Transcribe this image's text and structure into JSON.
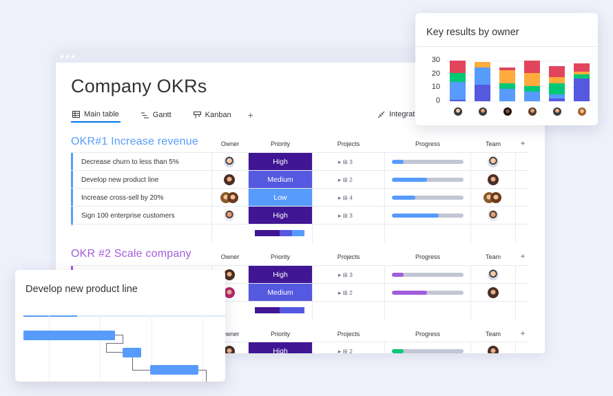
{
  "window": {
    "title": "Company OKRs",
    "tabs": [
      {
        "label": "Main table",
        "icon": "table-icon",
        "active": true
      },
      {
        "label": "Gantt",
        "icon": "gantt-icon",
        "active": false
      },
      {
        "label": "Kanban",
        "icon": "kanban-icon",
        "active": false
      }
    ],
    "add_tab": "+",
    "integrate_label": "Integrat",
    "integrate_icon": "integrate-icon"
  },
  "columns": {
    "owner": "Owner",
    "priority": "Priority",
    "projects": "Projects",
    "progress": "Progress",
    "team": "Team",
    "add": "+"
  },
  "groups": [
    {
      "title": "OKR#1 Increase revenue",
      "color": "#579bfc",
      "rows": [
        {
          "name": "Decrease churn to less than 5%",
          "priority": "High",
          "priority_color": "#401694",
          "projects": "3",
          "progress": 0.16,
          "progress_color": "#579bfc"
        },
        {
          "name": "Develop new product line",
          "priority": "Medium",
          "priority_color": "#5559df",
          "projects": "2",
          "progress": 0.49,
          "progress_color": "#579bfc"
        },
        {
          "name": "Increase cross-sell by 20%",
          "priority": "Low",
          "priority_color": "#579bfc",
          "projects": "4",
          "progress": 0.33,
          "progress_color": "#579bfc"
        },
        {
          "name": "Sign 100 enterprise customers",
          "priority": "High",
          "priority_color": "#401694",
          "projects": "3",
          "progress": 0.65,
          "progress_color": "#579bfc"
        }
      ]
    },
    {
      "title": "OKR #2 Scale company",
      "color": "#a25ddc",
      "rows": [
        {
          "name": "",
          "priority": "High",
          "priority_color": "#401694",
          "projects": "3",
          "progress": 0.16,
          "progress_color": "#a25ddc"
        },
        {
          "name": "",
          "priority": "Medium",
          "priority_color": "#5559df",
          "projects": "2",
          "progress": 0.49,
          "progress_color": "#a25ddc"
        }
      ]
    },
    {
      "title": "",
      "color": "#00c875",
      "rows": [
        {
          "name": "",
          "priority": "High",
          "priority_color": "#401694",
          "projects": "2",
          "progress": 0.16,
          "progress_color": "#00c875"
        }
      ]
    }
  ],
  "key_results_card": {
    "title": "Key results by owner"
  },
  "gantt_card": {
    "title": "Develop new product line"
  },
  "chart_data": {
    "type": "bar",
    "title": "Key results by owner",
    "stacked": true,
    "ylim": [
      0,
      30
    ],
    "yticks": [
      "30",
      "20",
      "10",
      "0"
    ],
    "categories": [
      "owner-1",
      "owner-2",
      "owner-3",
      "owner-4",
      "owner-5",
      "owner-6"
    ],
    "series": [
      {
        "color": "#5559df",
        "values": [
          1,
          12,
          0,
          0,
          2,
          17
        ]
      },
      {
        "color": "#579bfc",
        "values": [
          13,
          13,
          9,
          7,
          3,
          0
        ]
      },
      {
        "color": "#00c875",
        "values": [
          7,
          0,
          4,
          4,
          8,
          3
        ]
      },
      {
        "color": "#fdab3d",
        "values": [
          0,
          4,
          10,
          10,
          5,
          2
        ]
      },
      {
        "color": "#e2445c",
        "values": [
          9,
          0,
          2,
          9,
          8,
          6
        ]
      }
    ],
    "legend": "none",
    "grid": true
  }
}
